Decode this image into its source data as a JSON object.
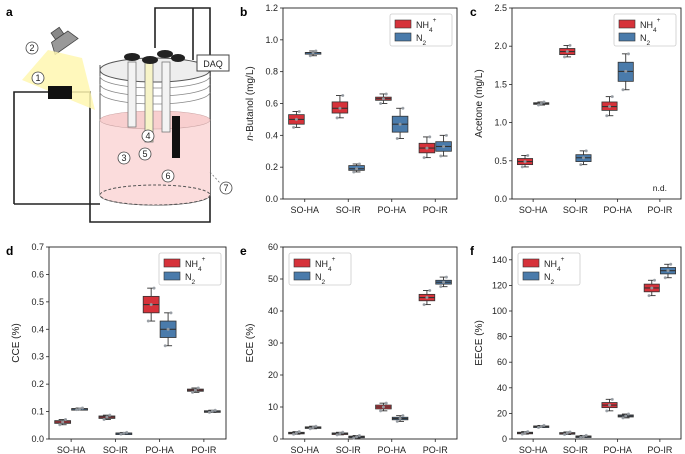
{
  "colors": {
    "nh4": "#d6323a",
    "n2": "#4a7bab",
    "median": "#333333",
    "dot": "#9aa0a6"
  },
  "schematic": {
    "panel_label": "a",
    "daq_label": "DAQ",
    "callouts": [
      "1",
      "2",
      "3",
      "4",
      "5",
      "6",
      "7"
    ]
  },
  "chart_data": [
    {
      "panel": "b",
      "type": "box",
      "ylabel_prefix": "n",
      "ylabel_rest": "-Butanol (mg/L)",
      "categories": [
        "SO-HA",
        "SO-IR",
        "PO-HA",
        "PO-IR"
      ],
      "ylim": [
        0,
        1.2
      ],
      "yticks": [
        "0.0",
        "0.2",
        "0.4",
        "0.6",
        "0.8",
        "1.0",
        "1.2"
      ],
      "legend": {
        "nh4": "NH",
        "nh4_sub": "4",
        "nh4_sup": "+",
        "n2": "N",
        "n2_sub": "2",
        "position": "top-right"
      },
      "series": [
        {
          "name": "NH4+",
          "boxes": [
            [
              0.45,
              0.47,
              0.5,
              0.53,
              0.55
            ],
            [
              0.51,
              0.54,
              0.57,
              0.61,
              0.65
            ],
            [
              0.6,
              0.62,
              0.63,
              0.64,
              0.66
            ],
            [
              0.26,
              0.29,
              0.32,
              0.35,
              0.39
            ]
          ]
        },
        {
          "name": "N2",
          "boxes": [
            [
              0.9,
              0.91,
              0.92,
              0.92,
              0.93
            ],
            [
              0.17,
              0.18,
              0.19,
              0.21,
              0.22
            ],
            [
              0.38,
              0.42,
              0.47,
              0.52,
              0.57
            ],
            [
              0.27,
              0.3,
              0.33,
              0.36,
              0.4
            ]
          ]
        }
      ],
      "note": ""
    },
    {
      "panel": "c",
      "type": "box",
      "ylabel_prefix": "",
      "ylabel_rest": "Acetone (mg/L)",
      "categories": [
        "SO-HA",
        "SO-IR",
        "PO-HA",
        "PO-IR"
      ],
      "ylim": [
        0,
        2.5
      ],
      "yticks": [
        "0.0",
        "0.5",
        "1.0",
        "1.5",
        "2.0",
        "2.5"
      ],
      "legend": {
        "nh4": "NH",
        "nh4_sub": "4",
        "nh4_sup": "+",
        "n2": "N",
        "n2_sub": "2",
        "position": "top-right"
      },
      "series": [
        {
          "name": "NH4+",
          "boxes": [
            [
              0.42,
              0.45,
              0.49,
              0.53,
              0.57
            ],
            [
              1.86,
              1.89,
              1.93,
              1.97,
              2.01
            ],
            [
              1.09,
              1.16,
              1.21,
              1.27,
              1.34
            ],
            null
          ]
        },
        {
          "name": "N2",
          "boxes": [
            [
              1.23,
              1.24,
              1.25,
              1.26,
              1.27
            ],
            [
              0.45,
              0.49,
              0.54,
              0.58,
              0.63
            ],
            [
              1.43,
              1.54,
              1.67,
              1.79,
              1.9
            ],
            null
          ]
        }
      ],
      "note": "n.d."
    },
    {
      "panel": "d",
      "type": "box",
      "ylabel_prefix": "",
      "ylabel_rest": "CCE (%)",
      "categories": [
        "SO-HA",
        "SO-IR",
        "PO-HA",
        "PO-IR"
      ],
      "ylim": [
        0,
        0.7
      ],
      "yticks": [
        "0.0",
        "0.1",
        "0.2",
        "0.3",
        "0.4",
        "0.5",
        "0.6",
        "0.7"
      ],
      "legend": {
        "nh4": "NH",
        "nh4_sub": "4",
        "nh4_sup": "+",
        "n2": "N",
        "n2_sub": "2",
        "position": "top-right"
      },
      "series": [
        {
          "name": "NH4+",
          "boxes": [
            [
              0.052,
              0.057,
              0.062,
              0.067,
              0.071
            ],
            [
              0.071,
              0.075,
              0.08,
              0.084,
              0.087
            ],
            [
              0.43,
              0.46,
              0.49,
              0.52,
              0.55
            ],
            [
              0.17,
              0.174,
              0.178,
              0.182,
              0.186
            ]
          ]
        },
        {
          "name": "N2",
          "boxes": [
            [
              0.107,
              0.109,
              0.11,
              0.111,
              0.113
            ],
            [
              0.018,
              0.019,
              0.021,
              0.022,
              0.024
            ],
            [
              0.34,
              0.37,
              0.4,
              0.43,
              0.46
            ],
            [
              0.097,
              0.099,
              0.101,
              0.103,
              0.105
            ]
          ]
        }
      ],
      "note": ""
    },
    {
      "panel": "e",
      "type": "box",
      "ylabel_prefix": "",
      "ylabel_rest": "ECE (%)",
      "categories": [
        "SO-HA",
        "SO-IR",
        "PO-HA",
        "PO-IR"
      ],
      "ylim": [
        0,
        60
      ],
      "yticks": [
        "0",
        "10",
        "20",
        "30",
        "40",
        "50",
        "60"
      ],
      "legend": {
        "nh4": "NH",
        "nh4_sub": "4",
        "nh4_sup": "+",
        "n2": "N",
        "n2_sub": "2",
        "position": "top-left"
      },
      "series": [
        {
          "name": "NH4+",
          "boxes": [
            [
              1.5,
              1.7,
              1.9,
              2.1,
              2.3
            ],
            [
              1.3,
              1.5,
              1.7,
              1.9,
              2.1
            ],
            [
              8.8,
              9.4,
              10.0,
              10.6,
              11.2
            ],
            [
              42.0,
              43.2,
              44.2,
              45.2,
              46.4
            ]
          ]
        },
        {
          "name": "N2",
          "boxes": [
            [
              3.2,
              3.4,
              3.6,
              3.8,
              4.0
            ],
            [
              0.3,
              0.5,
              0.7,
              0.9,
              1.1
            ],
            [
              5.5,
              6.0,
              6.4,
              6.8,
              7.3
            ],
            [
              47.6,
              48.4,
              49.0,
              49.6,
              50.6
            ]
          ]
        }
      ],
      "note": ""
    },
    {
      "panel": "f",
      "type": "box",
      "ylabel_prefix": "",
      "ylabel_rest": "EECE (%)",
      "categories": [
        "SO-HA",
        "SO-IR",
        "PO-HA",
        "PO-IR"
      ],
      "ylim": [
        0,
        150
      ],
      "yticks": [
        "0",
        "20",
        "40",
        "60",
        "80",
        "100",
        "120",
        "140"
      ],
      "legend": {
        "nh4": "NH",
        "nh4_sub": "4",
        "nh4_sup": "+",
        "n2": "N",
        "n2_sub": "2",
        "position": "top-left"
      },
      "series": [
        {
          "name": "NH4+",
          "boxes": [
            [
              3.8,
              4.3,
              4.8,
              5.3,
              5.8
            ],
            [
              3.5,
              4.0,
              4.5,
              5.0,
              5.5
            ],
            [
              22.0,
              24.5,
              26.5,
              28.5,
              31.0
            ],
            [
              112.0,
              115.0,
              118.0,
              121.0,
              124.0
            ]
          ]
        },
        {
          "name": "N2",
          "boxes": [
            [
              9.0,
              9.4,
              9.8,
              10.2,
              10.6
            ],
            [
              1.2,
              1.6,
              2.0,
              2.4,
              2.8
            ],
            [
              16.5,
              17.2,
              18.0,
              18.8,
              19.5
            ],
            [
              126.0,
              129.0,
              131.5,
              134.0,
              136.5
            ]
          ]
        }
      ],
      "note": ""
    }
  ]
}
